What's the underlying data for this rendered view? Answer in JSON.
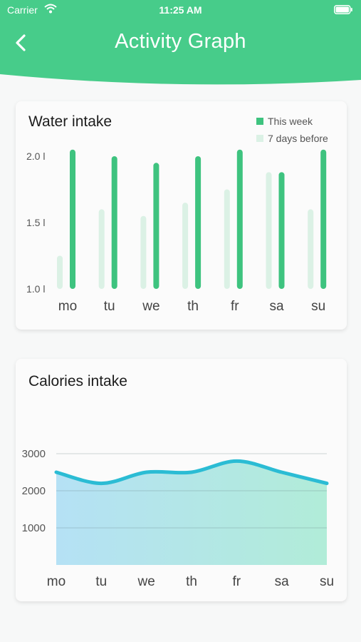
{
  "status_bar": {
    "carrier": "Carrier",
    "time": "11:25 AM",
    "wifi_icon": "wifi-icon",
    "battery_icon": "battery-icon"
  },
  "header": {
    "title": "Activity Graph",
    "back_icon": "chevron-left-icon",
    "color": "#47cc8a"
  },
  "colors": {
    "this_week": "#3ec37f",
    "seven_days_before": "#dbf1e5",
    "calories_line": "#2bbcd4",
    "calories_fill_start": "#b5e1f5",
    "calories_fill_end": "#b1ecd8"
  },
  "water": {
    "title": "Water intake",
    "legend": {
      "this_week": "This week",
      "before": "7 days before"
    }
  },
  "calories": {
    "title": "Calories intake"
  },
  "chart_data": [
    {
      "type": "bar",
      "title": "Water intake",
      "categories": [
        "mo",
        "tu",
        "we",
        "th",
        "fr",
        "sa",
        "su"
      ],
      "y_tick_labels": [
        "1.0 l",
        "1.5 l",
        "2.0 l"
      ],
      "y_ticks": [
        1.0,
        1.5,
        2.0
      ],
      "ylim": [
        1.0,
        2.05
      ],
      "grid": false,
      "legend_position": "top-right",
      "series": [
        {
          "name": "7 days before",
          "values": [
            1.25,
            1.6,
            1.55,
            1.65,
            1.75,
            1.88,
            1.6
          ]
        },
        {
          "name": "This week",
          "values": [
            2.05,
            2.0,
            1.95,
            2.0,
            2.05,
            1.88,
            2.05
          ]
        }
      ]
    },
    {
      "type": "area",
      "title": "Calories intake",
      "categories": [
        "mo",
        "tu",
        "we",
        "th",
        "fr",
        "sa",
        "su"
      ],
      "y_ticks": [
        1000,
        2000,
        3000
      ],
      "ylim": [
        0,
        3000
      ],
      "grid": true,
      "values": [
        2500,
        2200,
        2500,
        2500,
        2800,
        2500,
        2200
      ]
    }
  ]
}
